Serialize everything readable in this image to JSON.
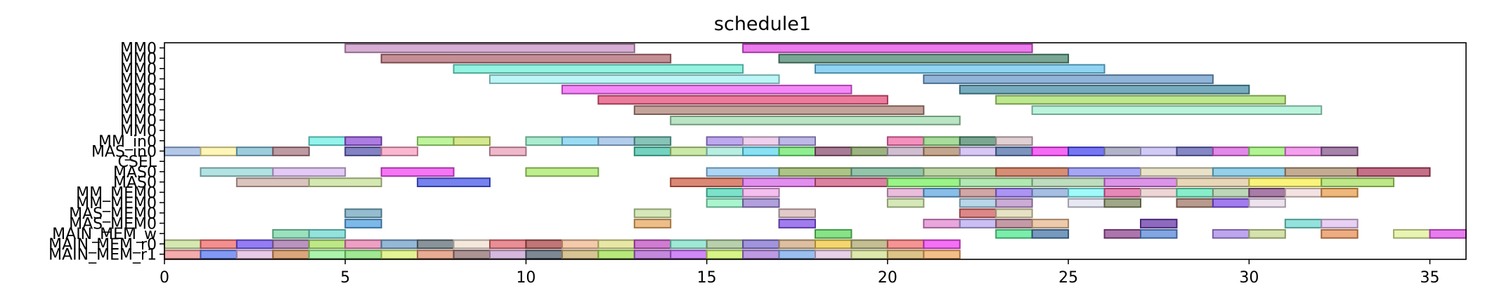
{
  "chart_data": {
    "type": "gantt",
    "title": "schedule1",
    "xlabel": "",
    "ylabel": "",
    "xlim": [
      0,
      36
    ],
    "xticks": [
      0,
      5,
      10,
      15,
      20,
      25,
      30,
      35
    ],
    "grid": false,
    "legend": "none",
    "rows": [
      "MM0",
      "MM0",
      "MM0",
      "MM0",
      "MM0",
      "MM0",
      "MM0",
      "MM0",
      "MM0",
      "MM_in0",
      "MAS_in0",
      "CSEL",
      "MAS0",
      "MAS0",
      "MM_MEM0",
      "MM_MEM0",
      "MAS_MEM0",
      "MAS_MEM0",
      "MAIN_MEM_w",
      "MAIN_MEM_r0",
      "MAIN_MEM_r1"
    ],
    "tasks": [
      {
        "row": 0,
        "start": 5,
        "end": 13,
        "color": "#c994c7"
      },
      {
        "row": 0,
        "start": 16,
        "end": 24,
        "color": "#e64fe6"
      },
      {
        "row": 1,
        "start": 6,
        "end": 14,
        "color": "#b06a72"
      },
      {
        "row": 1,
        "start": 17,
        "end": 25,
        "color": "#4e8a72"
      },
      {
        "row": 2,
        "start": 8,
        "end": 16,
        "color": "#6ff0d8"
      },
      {
        "row": 2,
        "start": 18,
        "end": 26,
        "color": "#69c6ee"
      },
      {
        "row": 3,
        "start": 9,
        "end": 17,
        "color": "#a4f2f2"
      },
      {
        "row": 3,
        "start": 21,
        "end": 29,
        "color": "#6c9ccc"
      },
      {
        "row": 4,
        "start": 11,
        "end": 19,
        "color": "#f060f4"
      },
      {
        "row": 4,
        "start": 22,
        "end": 30,
        "color": "#4a90a8"
      },
      {
        "row": 5,
        "start": 12,
        "end": 20,
        "color": "#e6507a"
      },
      {
        "row": 5,
        "start": 23,
        "end": 31,
        "color": "#a8e06a"
      },
      {
        "row": 6,
        "start": 13,
        "end": 21,
        "color": "#b08478"
      },
      {
        "row": 6,
        "start": 24,
        "end": 32,
        "color": "#a4f0d2"
      },
      {
        "row": 7,
        "start": 14,
        "end": 22,
        "color": "#a2dcb0"
      },
      {
        "row": 9,
        "start": 4,
        "end": 5,
        "color": "#6ff0e6"
      },
      {
        "row": 9,
        "start": 5,
        "end": 6,
        "color": "#9050d8"
      },
      {
        "row": 9,
        "start": 7,
        "end": 8,
        "color": "#a8f07a"
      },
      {
        "row": 9,
        "start": 8,
        "end": 9,
        "color": "#c6e06a"
      },
      {
        "row": 9,
        "start": 10,
        "end": 11,
        "color": "#8ee6c0"
      },
      {
        "row": 9,
        "start": 11,
        "end": 12,
        "color": "#7ad0f0"
      },
      {
        "row": 9,
        "start": 12,
        "end": 13,
        "color": "#98bce6"
      },
      {
        "row": 9,
        "start": 13,
        "end": 14,
        "color": "#5eb0a0"
      },
      {
        "row": 9,
        "start": 15,
        "end": 16,
        "color": "#a78ae8"
      },
      {
        "row": 9,
        "start": 16,
        "end": 17,
        "color": "#e8c0e8"
      },
      {
        "row": 9,
        "start": 17,
        "end": 18,
        "color": "#a8a0e0"
      },
      {
        "row": 9,
        "start": 20,
        "end": 21,
        "color": "#f06aa8"
      },
      {
        "row": 9,
        "start": 21,
        "end": 22,
        "color": "#8ad07a"
      },
      {
        "row": 9,
        "start": 22,
        "end": 23,
        "color": "#4e8a6e"
      },
      {
        "row": 9,
        "start": 23,
        "end": 24,
        "color": "#d6c0c6"
      },
      {
        "row": 10,
        "start": 0,
        "end": 1,
        "color": "#9ab4e0"
      },
      {
        "row": 10,
        "start": 1,
        "end": 2,
        "color": "#fef2a0"
      },
      {
        "row": 10,
        "start": 2,
        "end": 3,
        "color": "#7cbcd0"
      },
      {
        "row": 10,
        "start": 3,
        "end": 4,
        "color": "#a87884"
      },
      {
        "row": 10,
        "start": 5,
        "end": 6,
        "color": "#5a5ab0"
      },
      {
        "row": 10,
        "start": 6,
        "end": 7,
        "color": "#f8a0c0"
      },
      {
        "row": 10,
        "start": 9,
        "end": 10,
        "color": "#e8a0b8"
      },
      {
        "row": 10,
        "start": 13,
        "end": 14,
        "color": "#44c4a8"
      },
      {
        "row": 10,
        "start": 14,
        "end": 15,
        "color": "#b8e088"
      },
      {
        "row": 10,
        "start": 15,
        "end": 16,
        "color": "#a0e8d8"
      },
      {
        "row": 10,
        "start": 16,
        "end": 17,
        "color": "#60d8f0"
      },
      {
        "row": 10,
        "start": 17,
        "end": 18,
        "color": "#6ae86a"
      },
      {
        "row": 10,
        "start": 18,
        "end": 19,
        "color": "#8a5070"
      },
      {
        "row": 10,
        "start": 19,
        "end": 20,
        "color": "#7e9a5a"
      },
      {
        "row": 10,
        "start": 20,
        "end": 21,
        "color": "#c0a8c0"
      },
      {
        "row": 10,
        "start": 21,
        "end": 22,
        "color": "#b08868"
      },
      {
        "row": 10,
        "start": 22,
        "end": 23,
        "color": "#c8b4f0"
      },
      {
        "row": 10,
        "start": 23,
        "end": 24,
        "color": "#5070a8"
      },
      {
        "row": 10,
        "start": 24,
        "end": 25,
        "color": "#f038f0"
      },
      {
        "row": 10,
        "start": 25,
        "end": 26,
        "color": "#4848f0"
      },
      {
        "row": 10,
        "start": 26,
        "end": 27,
        "color": "#9898b8"
      },
      {
        "row": 10,
        "start": 27,
        "end": 28,
        "color": "#c0b8f0"
      },
      {
        "row": 10,
        "start": 28,
        "end": 29,
        "color": "#5c60b0"
      },
      {
        "row": 10,
        "start": 29,
        "end": 30,
        "color": "#d860e0"
      },
      {
        "row": 10,
        "start": 30,
        "end": 31,
        "color": "#98f070"
      },
      {
        "row": 10,
        "start": 31,
        "end": 32,
        "color": "#f080e8"
      },
      {
        "row": 10,
        "start": 32,
        "end": 33,
        "color": "#8a5a90"
      },
      {
        "row": 12,
        "start": 1,
        "end": 3,
        "color": "#9ad8d8"
      },
      {
        "row": 12,
        "start": 3,
        "end": 5,
        "color": "#d8b8f0"
      },
      {
        "row": 12,
        "start": 6,
        "end": 8,
        "color": "#f048f0"
      },
      {
        "row": 12,
        "start": 10,
        "end": 12,
        "color": "#a8e868"
      },
      {
        "row": 12,
        "start": 15,
        "end": 17,
        "color": "#90c8f0"
      },
      {
        "row": 12,
        "start": 17,
        "end": 19,
        "color": "#90b060"
      },
      {
        "row": 12,
        "start": 19,
        "end": 21,
        "color": "#70b090"
      },
      {
        "row": 12,
        "start": 21,
        "end": 23,
        "color": "#a8c888"
      },
      {
        "row": 12,
        "start": 23,
        "end": 25,
        "color": "#c86848"
      },
      {
        "row": 12,
        "start": 25,
        "end": 27,
        "color": "#8888f0"
      },
      {
        "row": 12,
        "start": 27,
        "end": 29,
        "color": "#e0d8b8"
      },
      {
        "row": 12,
        "start": 29,
        "end": 31,
        "color": "#70c0e0"
      },
      {
        "row": 12,
        "start": 31,
        "end": 33,
        "color": "#b09070"
      },
      {
        "row": 12,
        "start": 33,
        "end": 35,
        "color": "#b04060"
      },
      {
        "row": 13,
        "start": 2,
        "end": 4,
        "color": "#d0b0a8"
      },
      {
        "row": 13,
        "start": 4,
        "end": 6,
        "color": "#c8e098"
      },
      {
        "row": 13,
        "start": 7,
        "end": 9,
        "color": "#4858e8"
      },
      {
        "row": 13,
        "start": 14,
        "end": 16,
        "color": "#d06048"
      },
      {
        "row": 13,
        "start": 16,
        "end": 18,
        "color": "#d868e8"
      },
      {
        "row": 13,
        "start": 18,
        "end": 20,
        "color": "#d05880"
      },
      {
        "row": 13,
        "start": 20,
        "end": 22,
        "color": "#78f060"
      },
      {
        "row": 13,
        "start": 22,
        "end": 24,
        "color": "#98e098"
      },
      {
        "row": 13,
        "start": 24,
        "end": 26,
        "color": "#a8d0a8"
      },
      {
        "row": 13,
        "start": 26,
        "end": 28,
        "color": "#d070e0"
      },
      {
        "row": 13,
        "start": 28,
        "end": 30,
        "color": "#e0c8a0"
      },
      {
        "row": 13,
        "start": 30,
        "end": 32,
        "color": "#f8f050"
      },
      {
        "row": 13,
        "start": 32,
        "end": 34,
        "color": "#a8e060"
      },
      {
        "row": 14,
        "start": 15,
        "end": 16,
        "color": "#50d8b8"
      },
      {
        "row": 14,
        "start": 16,
        "end": 17,
        "color": "#f0a8e8"
      },
      {
        "row": 14,
        "start": 20,
        "end": 21,
        "color": "#e0a8d0"
      },
      {
        "row": 14,
        "start": 21,
        "end": 22,
        "color": "#60a8e0"
      },
      {
        "row": 14,
        "start": 22,
        "end": 23,
        "color": "#c08888"
      },
      {
        "row": 14,
        "start": 23,
        "end": 24,
        "color": "#9070f0"
      },
      {
        "row": 14,
        "start": 24,
        "end": 25,
        "color": "#88a8d8"
      },
      {
        "row": 14,
        "start": 25,
        "end": 26,
        "color": "#80f8f8"
      },
      {
        "row": 14,
        "start": 26,
        "end": 27,
        "color": "#e060a0"
      },
      {
        "row": 14,
        "start": 27,
        "end": 28,
        "color": "#e8c8c8"
      },
      {
        "row": 14,
        "start": 28,
        "end": 29,
        "color": "#60e8b8"
      },
      {
        "row": 14,
        "start": 29,
        "end": 30,
        "color": "#a8c8a0"
      },
      {
        "row": 14,
        "start": 30,
        "end": 31,
        "color": "#8a5088"
      },
      {
        "row": 14,
        "start": 31,
        "end": 32,
        "color": "#f0d8d8"
      },
      {
        "row": 14,
        "start": 32,
        "end": 33,
        "color": "#e8a050"
      },
      {
        "row": 15,
        "start": 15,
        "end": 16,
        "color": "#8ef0c0"
      },
      {
        "row": 15,
        "start": 16,
        "end": 17,
        "color": "#9880d0"
      },
      {
        "row": 15,
        "start": 20,
        "end": 21,
        "color": "#c8e0a0"
      },
      {
        "row": 15,
        "start": 22,
        "end": 23,
        "color": "#a0c8e0"
      },
      {
        "row": 15,
        "start": 23,
        "end": 24,
        "color": "#b890c8"
      },
      {
        "row": 15,
        "start": 25,
        "end": 26,
        "color": "#e0e0f0"
      },
      {
        "row": 15,
        "start": 26,
        "end": 27,
        "color": "#808860"
      },
      {
        "row": 15,
        "start": 28,
        "end": 29,
        "color": "#a07868"
      },
      {
        "row": 15,
        "start": 29,
        "end": 30,
        "color": "#8050e8"
      },
      {
        "row": 15,
        "start": 30,
        "end": 31,
        "color": "#e8d8e8"
      },
      {
        "row": 16,
        "start": 5,
        "end": 6,
        "color": "#70a8c0"
      },
      {
        "row": 16,
        "start": 13,
        "end": 14,
        "color": "#c8e0a0"
      },
      {
        "row": 16,
        "start": 17,
        "end": 18,
        "color": "#d8b8b8"
      },
      {
        "row": 16,
        "start": 22,
        "end": 23,
        "color": "#d06060"
      },
      {
        "row": 16,
        "start": 23,
        "end": 24,
        "color": "#e0d8b0"
      },
      {
        "row": 17,
        "start": 5,
        "end": 6,
        "color": "#50a0e0"
      },
      {
        "row": 17,
        "start": 13,
        "end": 14,
        "color": "#e8a860"
      },
      {
        "row": 17,
        "start": 17,
        "end": 18,
        "color": "#8050e8"
      },
      {
        "row": 17,
        "start": 21,
        "end": 22,
        "color": "#e088d0"
      },
      {
        "row": 17,
        "start": 22,
        "end": 23,
        "color": "#b8a8f0"
      },
      {
        "row": 17,
        "start": 23,
        "end": 24,
        "color": "#b07888"
      },
      {
        "row": 17,
        "start": 24,
        "end": 25,
        "color": "#e8b890"
      },
      {
        "row": 17,
        "start": 27,
        "end": 28,
        "color": "#6838a8"
      },
      {
        "row": 17,
        "start": 31,
        "end": 32,
        "color": "#70d8d0"
      },
      {
        "row": 17,
        "start": 32,
        "end": 33,
        "color": "#e0c0f0"
      },
      {
        "row": 18,
        "start": 3,
        "end": 4,
        "color": "#78d8a8"
      },
      {
        "row": 18,
        "start": 4,
        "end": 5,
        "color": "#70d8d0"
      },
      {
        "row": 18,
        "start": 18,
        "end": 19,
        "color": "#60d860"
      },
      {
        "row": 18,
        "start": 23,
        "end": 24,
        "color": "#50e890"
      },
      {
        "row": 18,
        "start": 24,
        "end": 25,
        "color": "#4878a8"
      },
      {
        "row": 18,
        "start": 26,
        "end": 27,
        "color": "#904890"
      },
      {
        "row": 18,
        "start": 27,
        "end": 28,
        "color": "#5888d8"
      },
      {
        "row": 18,
        "start": 29,
        "end": 30,
        "color": "#a888e8"
      },
      {
        "row": 18,
        "start": 30,
        "end": 31,
        "color": "#c8d890"
      },
      {
        "row": 18,
        "start": 32,
        "end": 33,
        "color": "#e89058"
      },
      {
        "row": 18,
        "start": 34,
        "end": 35,
        "color": "#e0f098"
      },
      {
        "row": 18,
        "start": 35,
        "end": 36,
        "color": "#e050e8"
      },
      {
        "row": 19,
        "start": 0,
        "end": 1,
        "color": "#c8e098"
      },
      {
        "row": 19,
        "start": 1,
        "end": 2,
        "color": "#f06a6a"
      },
      {
        "row": 19,
        "start": 2,
        "end": 3,
        "color": "#7050f0"
      },
      {
        "row": 19,
        "start": 3,
        "end": 4,
        "color": "#a070a8"
      },
      {
        "row": 19,
        "start": 4,
        "end": 5,
        "color": "#a8e060"
      },
      {
        "row": 19,
        "start": 5,
        "end": 6,
        "color": "#e880b0"
      },
      {
        "row": 19,
        "start": 6,
        "end": 7,
        "color": "#70a0c8"
      },
      {
        "row": 19,
        "start": 7,
        "end": 8,
        "color": "#607078"
      },
      {
        "row": 19,
        "start": 8,
        "end": 9,
        "color": "#f0e0d0"
      },
      {
        "row": 19,
        "start": 9,
        "end": 10,
        "color": "#e06870"
      },
      {
        "row": 19,
        "start": 10,
        "end": 11,
        "color": "#a84848"
      },
      {
        "row": 19,
        "start": 11,
        "end": 12,
        "color": "#f0b890"
      },
      {
        "row": 19,
        "start": 12,
        "end": 13,
        "color": "#e0e088"
      },
      {
        "row": 19,
        "start": 13,
        "end": 14,
        "color": "#c050c0"
      },
      {
        "row": 19,
        "start": 14,
        "end": 15,
        "color": "#80e0c8"
      },
      {
        "row": 19,
        "start": 15,
        "end": 16,
        "color": "#a0c090"
      },
      {
        "row": 19,
        "start": 16,
        "end": 17,
        "color": "#8070d0"
      },
      {
        "row": 19,
        "start": 17,
        "end": 18,
        "color": "#d0a880"
      },
      {
        "row": 19,
        "start": 18,
        "end": 19,
        "color": "#f0c840"
      },
      {
        "row": 19,
        "start": 19,
        "end": 20,
        "color": "#b0a870"
      },
      {
        "row": 19,
        "start": 20,
        "end": 21,
        "color": "#f07070"
      },
      {
        "row": 19,
        "start": 21,
        "end": 22,
        "color": "#f040f0"
      },
      {
        "row": 20,
        "start": 0,
        "end": 1,
        "color": "#f09090"
      },
      {
        "row": 20,
        "start": 1,
        "end": 2,
        "color": "#5878f0"
      },
      {
        "row": 20,
        "start": 2,
        "end": 3,
        "color": "#e0b8e0"
      },
      {
        "row": 20,
        "start": 3,
        "end": 4,
        "color": "#d08850"
      },
      {
        "row": 20,
        "start": 4,
        "end": 5,
        "color": "#90f090"
      },
      {
        "row": 20,
        "start": 5,
        "end": 6,
        "color": "#80e070"
      },
      {
        "row": 20,
        "start": 6,
        "end": 7,
        "color": "#d8f070"
      },
      {
        "row": 20,
        "start": 7,
        "end": 8,
        "color": "#e09070"
      },
      {
        "row": 20,
        "start": 8,
        "end": 9,
        "color": "#907070"
      },
      {
        "row": 20,
        "start": 9,
        "end": 10,
        "color": "#c8a0d0"
      },
      {
        "row": 20,
        "start": 10,
        "end": 11,
        "color": "#506070"
      },
      {
        "row": 20,
        "start": 11,
        "end": 12,
        "color": "#c8b070"
      },
      {
        "row": 20,
        "start": 12,
        "end": 13,
        "color": "#a0e050"
      },
      {
        "row": 20,
        "start": 13,
        "end": 14,
        "color": "#b060d0"
      },
      {
        "row": 20,
        "start": 14,
        "end": 15,
        "color": "#c060f0"
      },
      {
        "row": 20,
        "start": 15,
        "end": 16,
        "color": "#c8f060"
      },
      {
        "row": 20,
        "start": 16,
        "end": 17,
        "color": "#a878d8"
      },
      {
        "row": 20,
        "start": 17,
        "end": 18,
        "color": "#78a8e8"
      },
      {
        "row": 20,
        "start": 18,
        "end": 19,
        "color": "#e0c0e0"
      },
      {
        "row": 20,
        "start": 19,
        "end": 20,
        "color": "#d0e090"
      },
      {
        "row": 20,
        "start": 20,
        "end": 21,
        "color": "#d0b060"
      },
      {
        "row": 20,
        "start": 21,
        "end": 22,
        "color": "#f0a860"
      }
    ]
  }
}
